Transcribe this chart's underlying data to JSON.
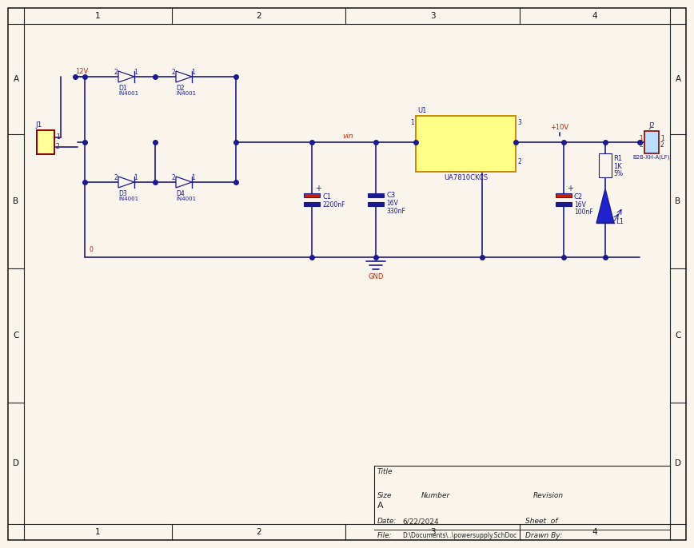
{
  "bg_color": "#faf5ec",
  "line_color": "#1a1a8c",
  "red_color": "#cc2200",
  "component_color": "#1a1a8c",
  "figsize": [
    8.68,
    6.86
  ],
  "dpi": 100,
  "title_block": {
    "title": "Title",
    "size_val": "A",
    "date_val": "6/22/2024",
    "file_val": "D:\\Documents\\..\\powersupply.SchDoc"
  }
}
